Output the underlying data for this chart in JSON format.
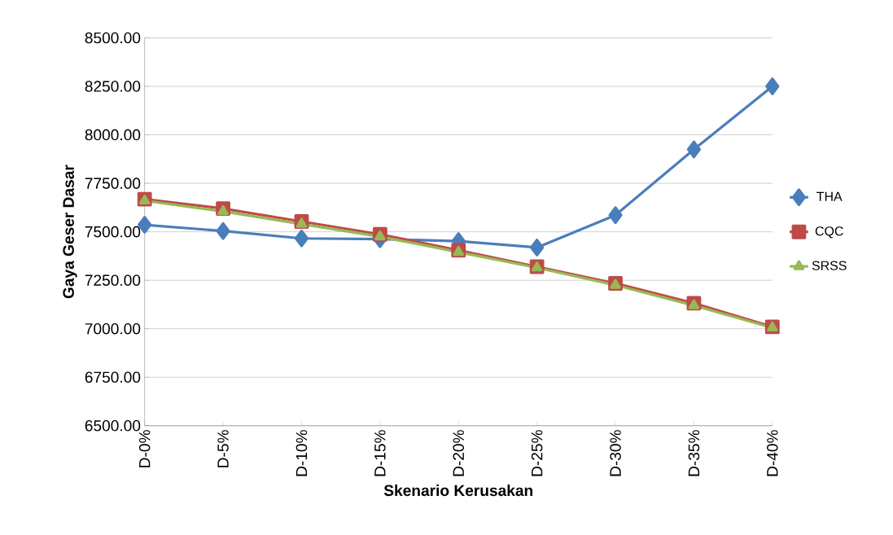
{
  "chart_data": {
    "type": "line",
    "xlabel": "Skenario Kerusakan",
    "ylabel": "Gaya Geser Dasar",
    "categories": [
      "D-0%",
      "D-5%",
      "D-10%",
      "D-15%",
      "D-20%",
      "D-25%",
      "D-30%",
      "D-35%",
      "D-40%"
    ],
    "series": [
      {
        "name": "THA",
        "color": "#4a7ebb",
        "marker": "diamond",
        "values": [
          7536,
          7504,
          7466,
          7462,
          7452,
          7419,
          7586,
          7925,
          8250
        ]
      },
      {
        "name": "CQC",
        "color": "#be4b48",
        "marker": "square",
        "values": [
          7668,
          7620,
          7553,
          7487,
          7405,
          7320,
          7234,
          7132,
          7010
        ]
      },
      {
        "name": "SRSS",
        "color": "#98b954",
        "marker": "triangle",
        "values": [
          7660,
          7605,
          7540,
          7475,
          7395,
          7315,
          7225,
          7120,
          7005
        ]
      }
    ],
    "ylim": [
      6500,
      8500
    ],
    "yticks": [
      {
        "value": 6500,
        "label": "6500.00"
      },
      {
        "value": 6750,
        "label": "6750.00"
      },
      {
        "value": 7000,
        "label": "7000.00"
      },
      {
        "value": 7250,
        "label": "7250.00"
      },
      {
        "value": 7500,
        "label": "7500.00"
      },
      {
        "value": 7750,
        "label": "7750.00"
      },
      {
        "value": 8000,
        "label": "8000.00"
      },
      {
        "value": 8250,
        "label": "8250.00"
      },
      {
        "value": 8500,
        "label": "8500.00"
      }
    ],
    "grid": "y",
    "legend": "right"
  }
}
